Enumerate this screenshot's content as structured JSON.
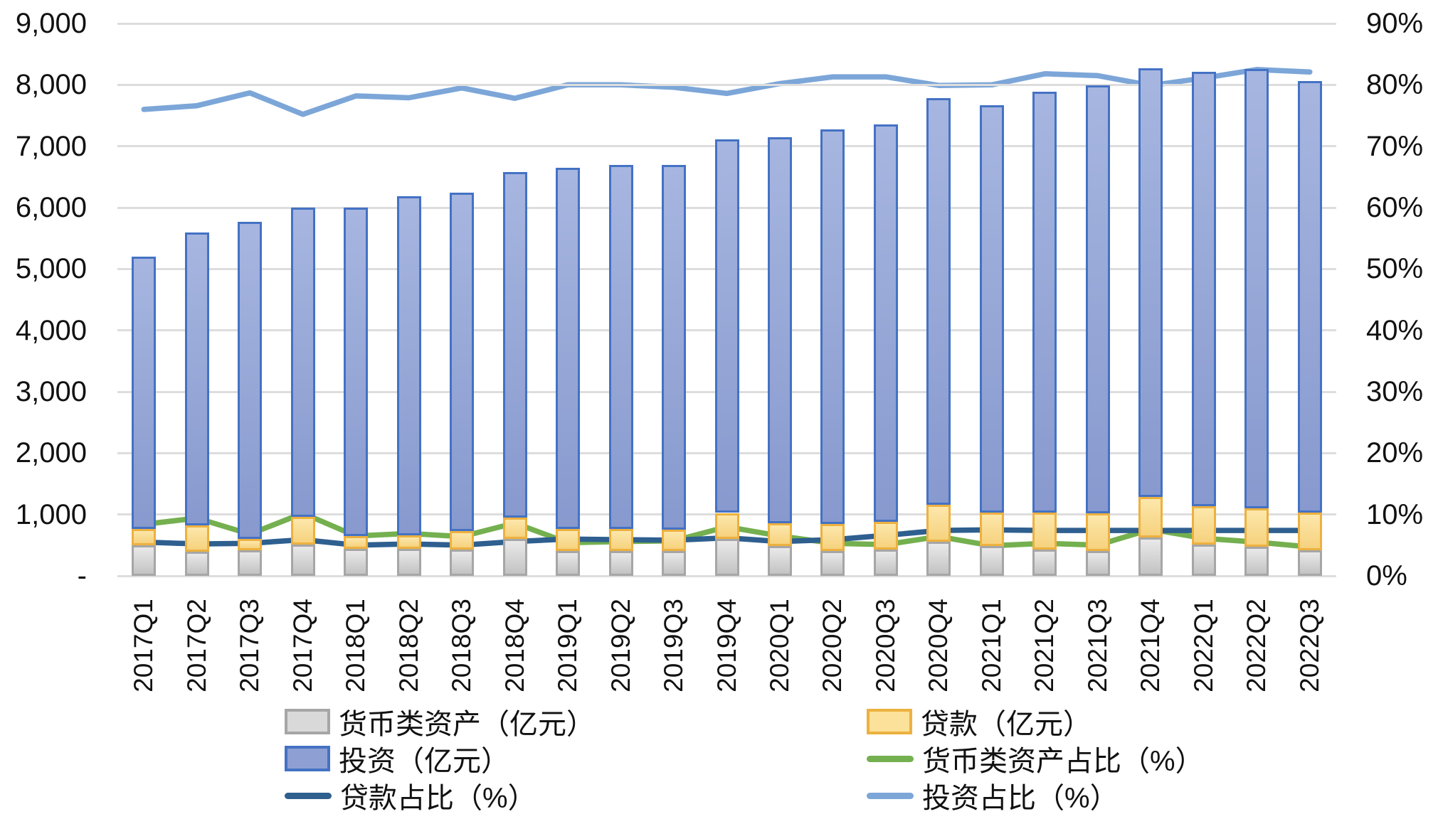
{
  "chart_data": {
    "type": "combo-stacked-bar-line",
    "title": "",
    "categories": [
      "2017Q1",
      "2017Q2",
      "2017Q3",
      "2017Q4",
      "2018Q1",
      "2018Q2",
      "2018Q3",
      "2018Q4",
      "2019Q1",
      "2019Q2",
      "2019Q3",
      "2019Q4",
      "2020Q1",
      "2020Q2",
      "2020Q3",
      "2020Q4",
      "2021Q1",
      "2021Q2",
      "2021Q3",
      "2021Q4",
      "2022Q1",
      "2022Q2",
      "2022Q3"
    ],
    "left_axis": {
      "min": 0,
      "max": 9000,
      "step": 1000,
      "tick_labels_top_to_bottom": [
        "9,000",
        "8,000",
        "7,000",
        "6,000",
        "5,000",
        "4,000",
        "3,000",
        "2,000",
        "1,000",
        "-"
      ]
    },
    "right_axis": {
      "min": 0,
      "max": 90,
      "step": 10,
      "unit": "%",
      "tick_labels_top_to_bottom": [
        "90%",
        "80%",
        "70%",
        "60%",
        "50%",
        "40%",
        "30%",
        "20%",
        "10%",
        "0%"
      ]
    },
    "grid": true,
    "bar_series": [
      {
        "name": "货币类资产（亿元）",
        "stack_order": 1,
        "fill": "#D9D9D9",
        "fill_gradient_top": "#E9E9E9",
        "fill_gradient_bottom": "#C3C3C3",
        "border": "#A6A6A6",
        "values": [
          495,
          395,
          420,
          515,
          440,
          435,
          425,
          605,
          410,
          410,
          410,
          605,
          490,
          410,
          430,
          555,
          490,
          430,
          410,
          620,
          510,
          480,
          420
        ]
      },
      {
        "name": "贷款（亿元）",
        "stack_order": 2,
        "fill": "#FBE19A",
        "fill_gradient_top": "#FCE7AB",
        "fill_gradient_bottom": "#F6D27E",
        "border": "#EDB13F",
        "values": [
          265,
          430,
          180,
          445,
          205,
          230,
          300,
          345,
          355,
          355,
          340,
          420,
          370,
          435,
          450,
          600,
          540,
          600,
          610,
          660,
          620,
          620,
          610
        ]
      },
      {
        "name": "投资（亿元）",
        "stack_order": 3,
        "fill": "#8EA0D3",
        "fill_gradient_top": "#A7B6E0",
        "fill_gradient_bottom": "#8799CE",
        "border": "#4472C4",
        "values": [
          4440,
          4765,
          5170,
          5040,
          5355,
          5520,
          5520,
          5630,
          5885,
          5925,
          5940,
          6085,
          6290,
          6425,
          6470,
          6625,
          6640,
          6860,
          6970,
          6990,
          7080,
          7160,
          7030
        ]
      }
    ],
    "bar_totals": [
      5200,
      5590,
      5770,
      6000,
      6000,
      6185,
      6245,
      6580,
      6650,
      6690,
      6690,
      7110,
      7150,
      7270,
      7350,
      7780,
      7670,
      7890,
      7990,
      8270,
      8210,
      8260,
      8060
    ],
    "line_series": [
      {
        "name": "货币类资产占比（%）",
        "axis": "right",
        "color": "#74B04F",
        "values": [
          8.4,
          9.4,
          6.8,
          10.2,
          6.5,
          6.9,
          6.4,
          8.6,
          5.4,
          5.6,
          5.7,
          8.0,
          6.5,
          5.3,
          5.1,
          6.4,
          4.9,
          5.3,
          5.0,
          7.6,
          6.1,
          5.5,
          4.7
        ]
      },
      {
        "name": "贷款占比（%）",
        "axis": "right",
        "color": "#2E5F8F",
        "values": [
          5.5,
          5.2,
          5.3,
          5.9,
          5.0,
          5.2,
          5.0,
          5.6,
          6.0,
          5.9,
          5.8,
          6.2,
          5.6,
          5.9,
          6.6,
          7.4,
          7.5,
          7.4,
          7.4,
          7.4,
          7.4,
          7.4,
          7.4
        ]
      },
      {
        "name": "投资占比（%）",
        "axis": "right",
        "color": "#7CA6D8",
        "values": [
          76.0,
          76.6,
          78.7,
          75.2,
          78.2,
          77.9,
          79.5,
          77.8,
          80.0,
          80.0,
          79.6,
          78.6,
          80.2,
          81.3,
          81.3,
          79.9,
          80.0,
          81.8,
          81.5,
          79.9,
          81.1,
          82.5,
          82.1
        ]
      }
    ],
    "legend": {
      "position": "bottom",
      "columns": 2,
      "items": [
        {
          "label": "货币类资产（亿元）",
          "swatch": "bar",
          "fill": "#D9D9D9",
          "border": "#A6A6A6"
        },
        {
          "label": "贷款（亿元）",
          "swatch": "bar",
          "fill": "#FBE19A",
          "border": "#EDB13F"
        },
        {
          "label": "投资（亿元）",
          "swatch": "bar",
          "fill": "#8EA0D3",
          "border": "#4472C4"
        },
        {
          "label": "货币类资产占比（%）",
          "swatch": "line",
          "color": "#74B04F"
        },
        {
          "label": "贷款占比（%）",
          "swatch": "line",
          "color": "#2E5F8F"
        },
        {
          "label": "投资占比（%）",
          "swatch": "line",
          "color": "#7CA6D8"
        }
      ]
    }
  }
}
